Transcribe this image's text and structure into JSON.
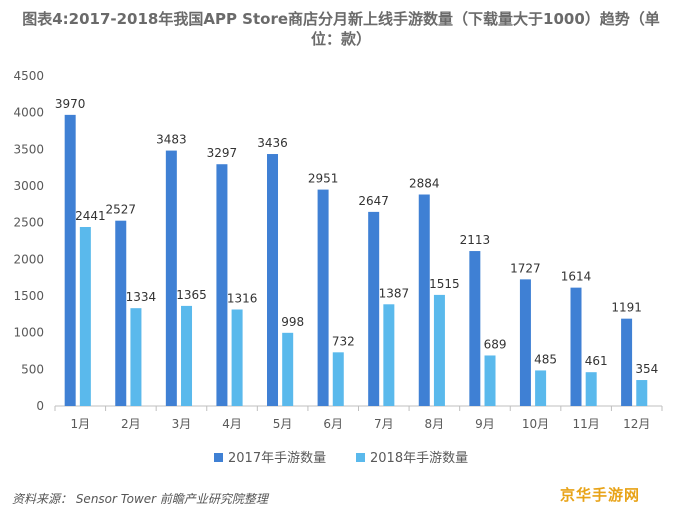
{
  "title": "图表4:2017-2018年我国APP Store商店分月新上线手游数量（下载量大于1000）趋势（单位：款）",
  "source": "资料来源： Sensor Tower 前瞻产业研究院整理",
  "brand": "京华手游网",
  "colors": {
    "series2017": "#3f80d4",
    "series2018": "#5ab9ec",
    "axis": "#bfbfbf",
    "text": "#595959"
  },
  "chart_data": {
    "type": "bar",
    "title": "图表4:2017-2018年我国APP Store商店分月新上线手游数量（下载量大于1000）趋势（单位：款）",
    "categories": [
      "1月",
      "2月",
      "3月",
      "4月",
      "5月",
      "6月",
      "7月",
      "8月",
      "9月",
      "10月",
      "11月",
      "12月"
    ],
    "series": [
      {
        "name": "2017年手游数量",
        "values": [
          3970,
          2527,
          3483,
          3297,
          3436,
          2951,
          2647,
          2884,
          2113,
          1727,
          1614,
          1191
        ]
      },
      {
        "name": "2018年手游数量",
        "values": [
          2441,
          1334,
          1365,
          1316,
          998,
          732,
          1387,
          1515,
          689,
          485,
          461,
          354
        ]
      }
    ],
    "yticks": [
      0,
      500,
      1000,
      1500,
      2000,
      2500,
      3000,
      3500,
      4000,
      4500
    ],
    "ylim": [
      0,
      4500
    ],
    "grid": false,
    "legend": "bottom"
  }
}
